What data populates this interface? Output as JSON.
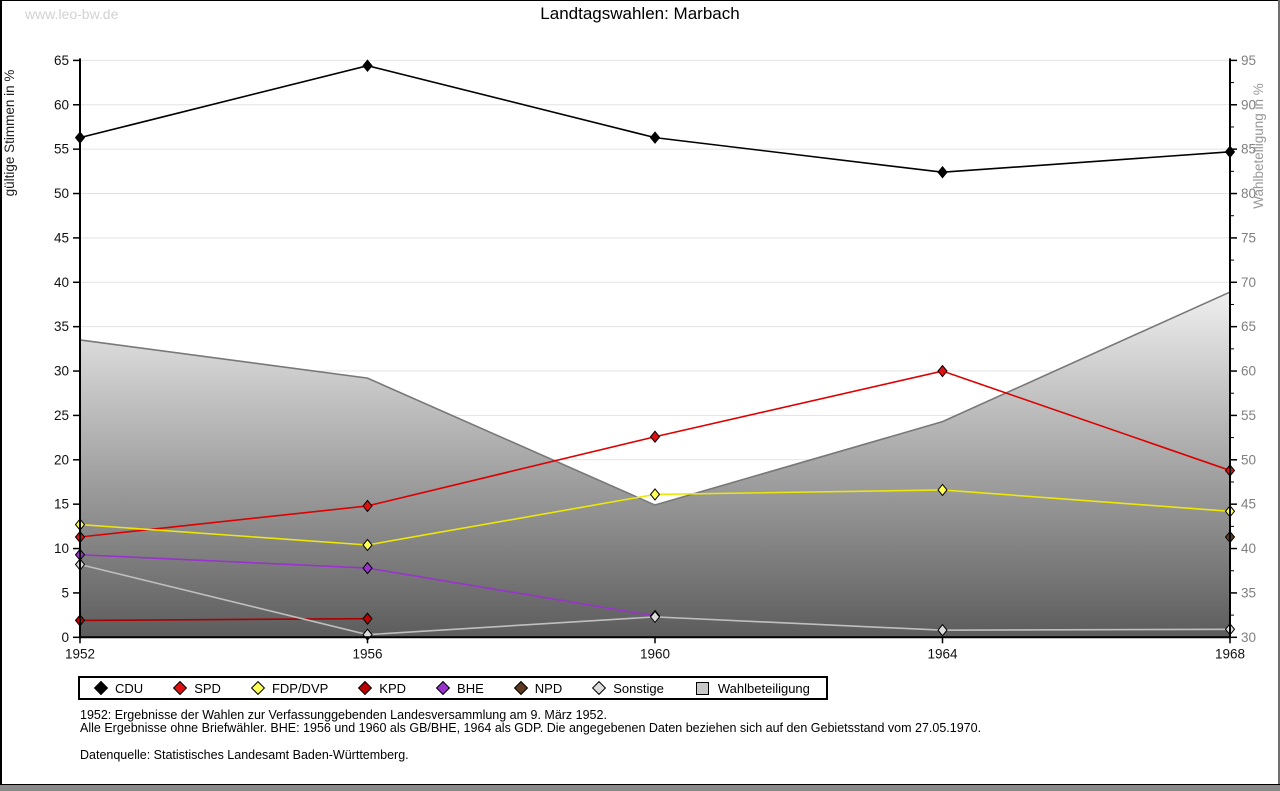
{
  "page": {
    "watermark": "www.leo-bw.de",
    "title": "Landtagswahlen: Marbach"
  },
  "chart_data": {
    "type": "line",
    "title": "Landtagswahlen: Marbach",
    "x": [
      1952,
      1956,
      1960,
      1964,
      1968
    ],
    "left_axis": {
      "label": "gültige Stimmen in %",
      "min": 0,
      "max": 65,
      "tick_step": 5,
      "ticks": [
        0,
        5,
        10,
        15,
        20,
        25,
        30,
        35,
        40,
        45,
        50,
        55,
        60,
        65
      ]
    },
    "right_axis": {
      "label": "Wahlbeteiligung in %",
      "min": 30,
      "max": 95,
      "tick_step": 5,
      "ticks": [
        30,
        35,
        40,
        45,
        50,
        55,
        60,
        65,
        70,
        75,
        80,
        85,
        90,
        95
      ]
    },
    "grid": true,
    "legend_position": "bottom",
    "series": [
      {
        "name": "CDU",
        "color": "#000000",
        "marker_color": "#000000",
        "values": [
          56.3,
          64.4,
          56.3,
          52.4,
          54.7
        ]
      },
      {
        "name": "SPD",
        "color": "#dd0000",
        "marker_color": "#dd1111",
        "values": [
          11.3,
          14.8,
          22.6,
          30.0,
          18.8
        ]
      },
      {
        "name": "FDP/DVP",
        "color": "#ece60b",
        "marker_color": "#ffff55",
        "values": [
          12.7,
          10.4,
          16.1,
          16.6,
          14.2
        ]
      },
      {
        "name": "KPD",
        "color": "#aa0000",
        "marker_color": "#bb0000",
        "values": [
          1.9,
          2.1,
          null,
          null,
          null
        ]
      },
      {
        "name": "BHE",
        "color": "#9933cc",
        "marker_color": "#9933cc",
        "values": [
          9.3,
          7.8,
          2.4,
          null,
          null
        ]
      },
      {
        "name": "NPD",
        "color": "#5e3a20",
        "marker_color": "#5e3a20",
        "values": [
          null,
          null,
          null,
          null,
          11.3
        ]
      },
      {
        "name": "Sonstige",
        "color": "#bfbfbf",
        "marker_color": "#dcdcdc",
        "values": [
          8.2,
          0.3,
          2.3,
          0.8,
          0.9
        ]
      }
    ],
    "area_series": {
      "name": "Wahlbeteiligung",
      "axis": "right",
      "values": [
        63.5,
        59.2,
        44.9,
        54.3,
        68.9
      ],
      "edge_color": "#787878",
      "fill_top": "#efefef",
      "fill_bottom": "#5c5c5c"
    }
  },
  "legend": {
    "items": [
      {
        "label": "CDU",
        "shape": "diamond",
        "color": "#000000"
      },
      {
        "label": "SPD",
        "shape": "diamond",
        "color": "#dd1111"
      },
      {
        "label": "FDP/DVP",
        "shape": "diamond",
        "color": "#ffff55"
      },
      {
        "label": "KPD",
        "shape": "diamond",
        "color": "#bb0000"
      },
      {
        "label": "BHE",
        "shape": "diamond",
        "color": "#9933cc"
      },
      {
        "label": "NPD",
        "shape": "diamond",
        "color": "#5e3a20"
      },
      {
        "label": "Sonstige",
        "shape": "diamond",
        "color": "#dcdcdc"
      },
      {
        "label": "Wahlbeteiligung",
        "shape": "square",
        "color": "#c8c8c8"
      }
    ]
  },
  "footnotes": {
    "line1": "1952: Ergebnisse der Wahlen zur Verfassunggebenden Landesversammlung am 9. März 1952.",
    "line2": "Alle Ergebnisse ohne Briefwähler. BHE: 1956 und 1960 als GB/BHE, 1964 als GDP. Die angegebenen Daten beziehen sich auf den Gebietsstand vom 27.05.1970.",
    "source": "Datenquelle: Statistisches Landesamt Baden-Württemberg."
  },
  "colors": {
    "grid": "#e3e3e3",
    "axis": "#000000",
    "right_tick_label": "#808080",
    "right_axis_title": "#999999",
    "left_axis_title": "#222222"
  }
}
